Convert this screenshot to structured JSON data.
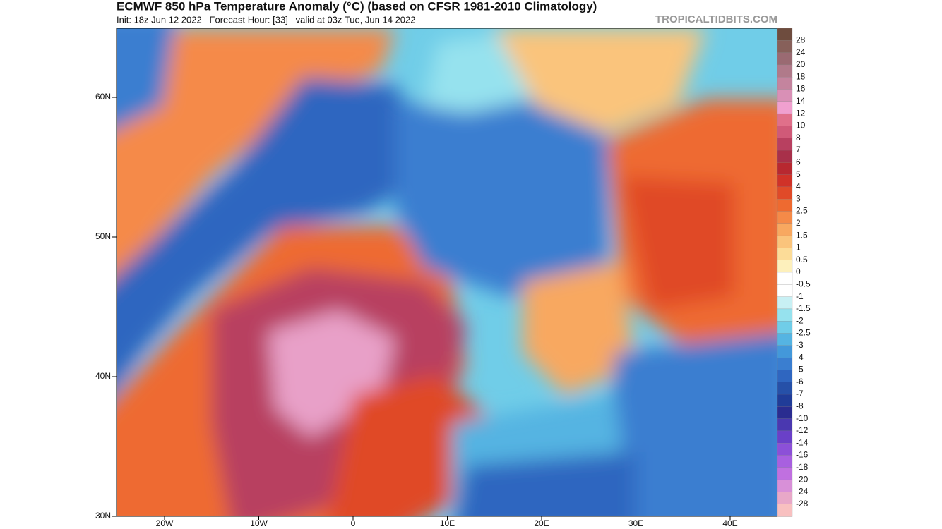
{
  "header": {
    "title": "ECMWF 850 hPa Temperature Anomaly (°C) (based on CFSR 1981-2010 Climatology)",
    "subtitle": "Init: 18z Jun 12 2022   Forecast Hour: [33]   valid at 03z Tue, Jun 14 2022",
    "watermark": "TROPICALTIDBITS.COM"
  },
  "map": {
    "lat_labels": [
      "60N",
      "50N",
      "40N",
      "30N"
    ],
    "lon_labels": [
      "20W",
      "10W",
      "0",
      "10E",
      "20E",
      "30E",
      "40E"
    ]
  },
  "colorbar": {
    "labels": [
      "28",
      "24",
      "20",
      "18",
      "16",
      "14",
      "12",
      "10",
      "8",
      "7",
      "6",
      "5",
      "4",
      "3",
      "2.5",
      "2",
      "1.5",
      "1",
      "0.5",
      "0",
      "-0.5",
      "-1",
      "-1.5",
      "-2",
      "-2.5",
      "-3",
      "-4",
      "-5",
      "-6",
      "-7",
      "-8",
      "-10",
      "-12",
      "-14",
      "-16",
      "-18",
      "-20",
      "-24",
      "-28"
    ],
    "colors": [
      "#6e4c3e",
      "#87605a",
      "#9a6a72",
      "#b07a8a",
      "#c4849e",
      "#d990b6",
      "#f0a0cf",
      "#e0708a",
      "#d05a78",
      "#b84060",
      "#a8304a",
      "#b82830",
      "#d03228",
      "#e04a28",
      "#ee6a30",
      "#f58a48",
      "#f8a860",
      "#fac47c",
      "#fcdc98",
      "#fdf0bc",
      "#ffffff",
      "#ffffff",
      "#c8f0f4",
      "#96e2ee",
      "#70cde8",
      "#55b4e2",
      "#4398da",
      "#3a7ed0",
      "#2f66c0",
      "#2650a8",
      "#203c98",
      "#2a2c90",
      "#4a38b0",
      "#6a40c8",
      "#8c50d8",
      "#a860e0",
      "#c070e0",
      "#d890d8",
      "#e8a8c8",
      "#f8c0c0"
    ]
  }
}
